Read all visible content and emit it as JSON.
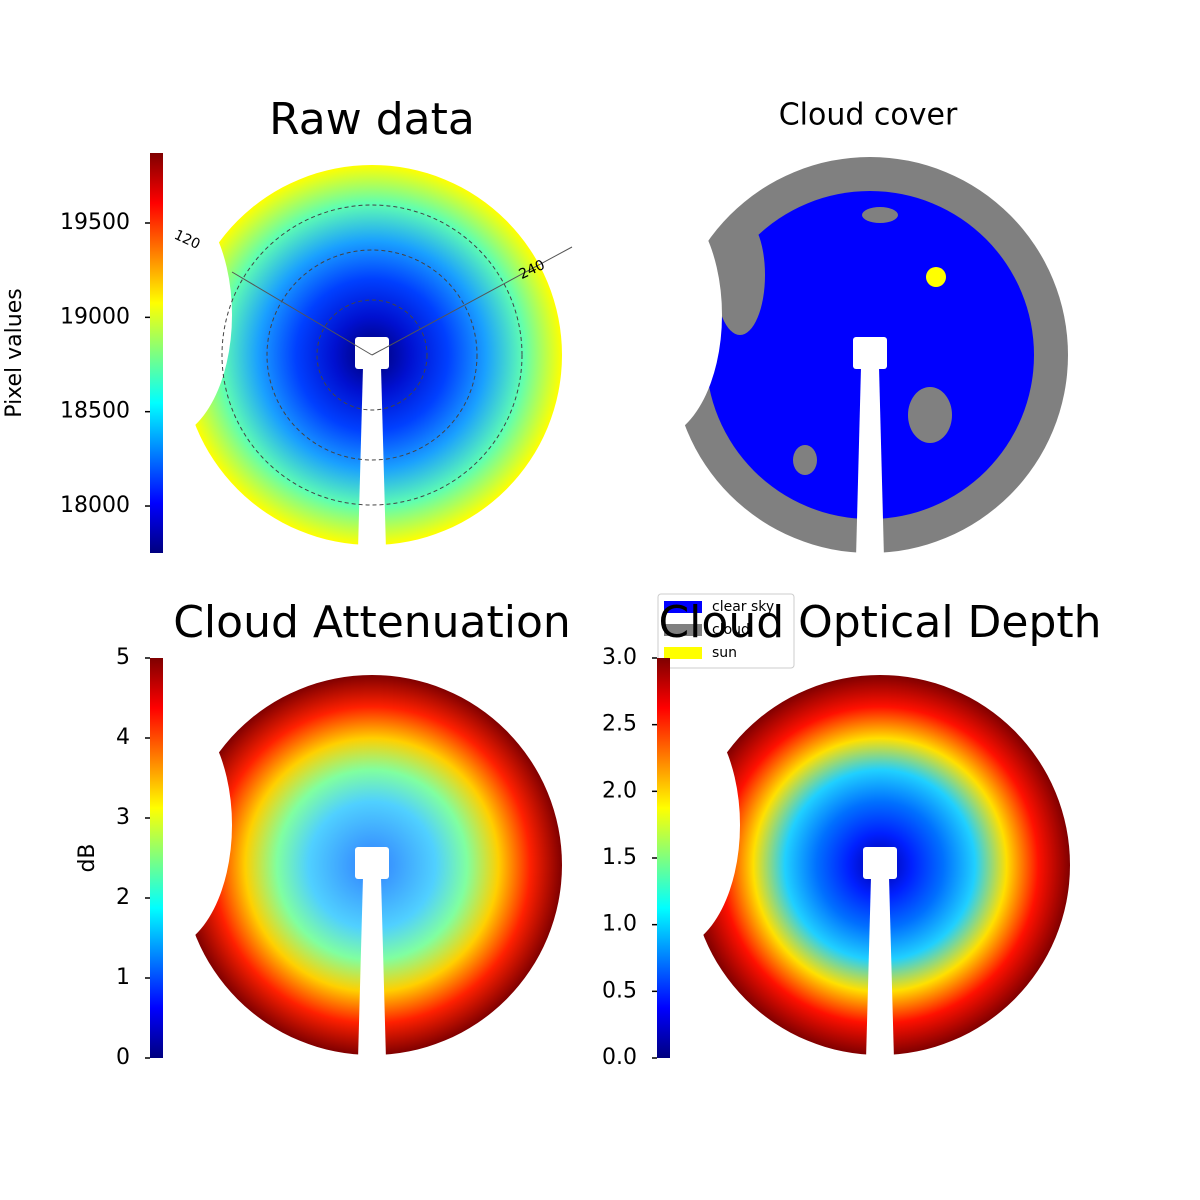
{
  "chart_data": [
    {
      "type": "image",
      "title": "Raw data",
      "colormap": "jet",
      "colorbar": {
        "label": "Pixel values",
        "lim": [
          17751,
          19871
        ],
        "ticks": [
          18000,
          18500,
          19000,
          19500
        ]
      },
      "annotations": [
        "120",
        "240"
      ]
    },
    {
      "type": "classification",
      "title": "Cloud cover",
      "series": [
        {
          "name": "clear sky",
          "color": "#0000ff"
        },
        {
          "name": "cloud",
          "color": "#808080"
        },
        {
          "name": "sun",
          "color": "#ffff00"
        }
      ]
    },
    {
      "type": "image",
      "title": "Cloud Attenuation",
      "colormap": "jet",
      "colorbar": {
        "label": "dB",
        "lim": [
          0,
          5
        ],
        "ticks": [
          0,
          1,
          2,
          3,
          4,
          5
        ]
      }
    },
    {
      "type": "image",
      "title": "Cloud Optical Depth",
      "colormap": "jet",
      "colorbar": {
        "lim": [
          0,
          3
        ],
        "ticks": [
          {
            "value": 0,
            "label": "0.0"
          },
          0.5,
          {
            "value": 1,
            "label": "1.0"
          },
          1.5,
          {
            "value": 2,
            "label": "2.0"
          },
          2.5,
          {
            "value": 3,
            "label": "3.0"
          }
        ]
      }
    }
  ]
}
